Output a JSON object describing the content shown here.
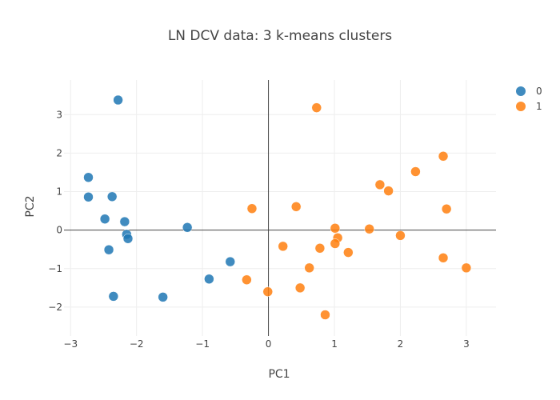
{
  "chart_data": {
    "type": "scatter",
    "title": "LN DCV data: 3 k-means clusters",
    "xlabel": "PC1",
    "ylabel": "PC2",
    "xlim": [
      -3.1,
      3.45
    ],
    "ylim": [
      -2.75,
      3.9
    ],
    "xticks": [
      -3,
      -2,
      -1,
      0,
      1,
      2,
      3
    ],
    "yticks": [
      -2,
      -1,
      0,
      1,
      2,
      3
    ],
    "tick_labels_x": [
      "−3",
      "−2",
      "−1",
      "0",
      "1",
      "2",
      "3"
    ],
    "tick_labels_y": [
      "−2",
      "−1",
      "0",
      "1",
      "2",
      "3"
    ],
    "grid": true,
    "legend_position": "top-right",
    "series": [
      {
        "name": "0",
        "color": "#1f77b4",
        "points": [
          [
            -2.28,
            3.38
          ],
          [
            -2.73,
            1.37
          ],
          [
            -2.73,
            0.86
          ],
          [
            -2.37,
            0.87
          ],
          [
            -2.48,
            0.29
          ],
          [
            -2.18,
            0.22
          ],
          [
            -2.15,
            -0.11
          ],
          [
            -2.13,
            -0.22
          ],
          [
            -2.42,
            -0.51
          ],
          [
            -1.23,
            0.07
          ],
          [
            -0.58,
            -0.82
          ],
          [
            -0.9,
            -1.27
          ],
          [
            -2.35,
            -1.72
          ],
          [
            -1.6,
            -1.74
          ]
        ]
      },
      {
        "name": "1",
        "color": "#ff7f0e",
        "points": [
          [
            0.73,
            3.18
          ],
          [
            2.65,
            1.92
          ],
          [
            2.23,
            1.52
          ],
          [
            1.69,
            1.18
          ],
          [
            1.82,
            1.02
          ],
          [
            2.7,
            0.55
          ],
          [
            -0.25,
            0.56
          ],
          [
            0.42,
            0.61
          ],
          [
            1.01,
            0.05
          ],
          [
            1.53,
            0.03
          ],
          [
            1.05,
            -0.2
          ],
          [
            1.01,
            -0.35
          ],
          [
            2.0,
            -0.14
          ],
          [
            0.22,
            -0.42
          ],
          [
            0.78,
            -0.47
          ],
          [
            1.21,
            -0.58
          ],
          [
            2.65,
            -0.72
          ],
          [
            3.0,
            -0.98
          ],
          [
            0.62,
            -0.98
          ],
          [
            -0.33,
            -1.29
          ],
          [
            0.48,
            -1.5
          ],
          [
            -0.01,
            -1.6
          ],
          [
            0.86,
            -2.2
          ]
        ]
      }
    ]
  }
}
